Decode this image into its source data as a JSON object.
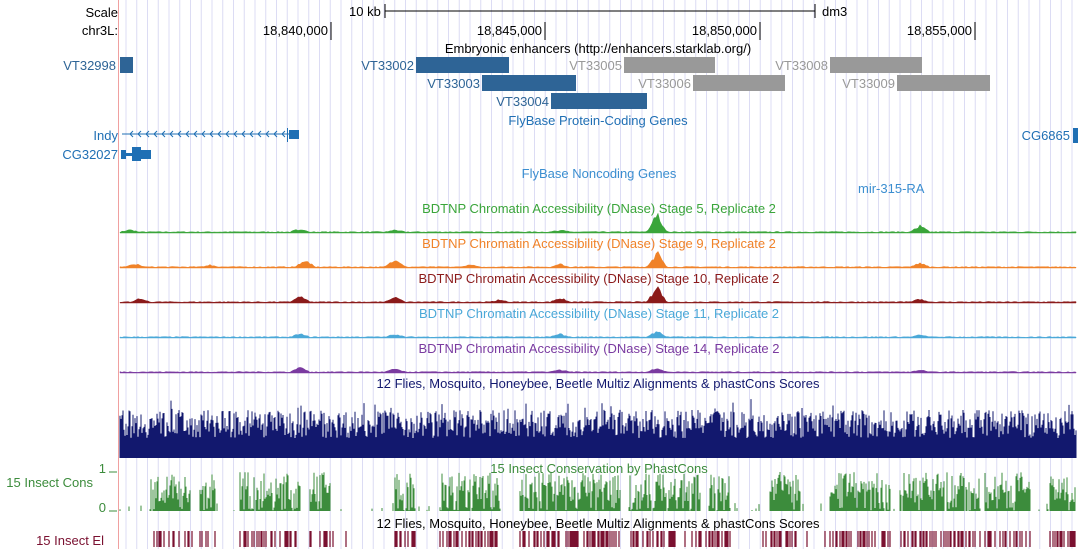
{
  "ruler": {
    "scale_label": "Scale",
    "scale_bar_label": "10 kb",
    "assembly": "dm3",
    "chrom_label": "chr3L:",
    "positions": [
      "18,840,000",
      "18,845,000",
      "18,850,000",
      "18,855,000"
    ]
  },
  "tracks": {
    "enhancers": {
      "title": "Embryonic enhancers (http://enhancers.starklab.org/)",
      "items": [
        {
          "name": "VT32998",
          "color": "#2e6496"
        },
        {
          "name": "VT33002",
          "color": "#2e6496"
        },
        {
          "name": "VT33003",
          "color": "#2e6496"
        },
        {
          "name": "VT33004",
          "color": "#2e6496"
        },
        {
          "name": "VT33005",
          "color": "#999999"
        },
        {
          "name": "VT33006",
          "color": "#999999"
        },
        {
          "name": "VT33008",
          "color": "#999999"
        },
        {
          "name": "VT33009",
          "color": "#999999"
        }
      ]
    },
    "protein_coding": {
      "title": "FlyBase Protein-Coding Genes",
      "genes": [
        "Indy",
        "CG32027",
        "CG6865"
      ],
      "color": "#1f6fb4"
    },
    "noncoding": {
      "title": "FlyBase Noncoding Genes",
      "genes": [
        "mir-315-RA"
      ],
      "color": "#3b8ed0"
    },
    "dnase": [
      {
        "title": "BDTNP Chromatin Accessibility (DNase) Stage 5, Replicate 2",
        "color": "#3aa53a"
      },
      {
        "title": "BDTNP Chromatin Accessibility (DNase) Stage 9, Replicate 2",
        "color": "#f08228"
      },
      {
        "title": "BDTNP Chromatin Accessibility (DNase) Stage 10, Replicate 2",
        "color": "#8b1a1a"
      },
      {
        "title": "BDTNP Chromatin Accessibility (DNase) Stage 11, Replicate 2",
        "color": "#4aa8d8"
      },
      {
        "title": "BDTNP Chromatin Accessibility (DNase) Stage 14, Replicate 2",
        "color": "#7a3aa0"
      }
    ],
    "multiz": {
      "title": "12 Flies, Mosquito, Honeybee, Beetle Multiz Alignments & phastCons Scores",
      "color": "#12186e"
    },
    "cons": {
      "side_label": "15 Insect Cons",
      "title": "15 Insect Conservation by PhastCons",
      "axis_top": "1",
      "axis_bottom": "0",
      "color": "#3c8c3c"
    },
    "elements": {
      "side_label": "15 Insect El",
      "title": "12 Flies, Mosquito, Honeybee, Beetle Multiz Alignments & phastCons Scores",
      "color": "#7a1030"
    }
  }
}
